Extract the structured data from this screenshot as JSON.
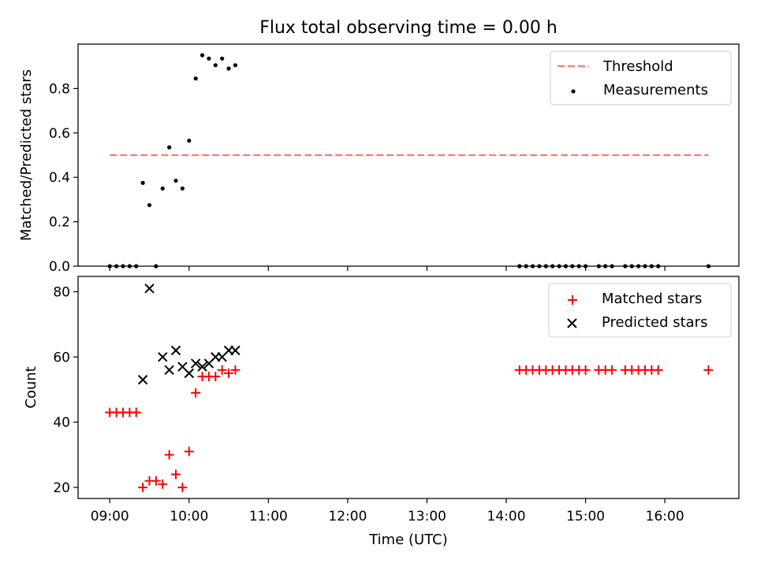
{
  "chart_data": [
    {
      "type": "scatter",
      "title": "Flux total observing time = 0.00 h",
      "xlabel": "",
      "ylabel": "Matched/Predicted stars",
      "xlim": [
        "08:36",
        "16:56"
      ],
      "ylim": [
        0.0,
        1.0
      ],
      "yticks": [
        "0.0",
        "0.2",
        "0.4",
        "0.6",
        "0.8"
      ],
      "ytick_values": [
        0.0,
        0.2,
        0.4,
        0.6,
        0.8
      ],
      "legend_position": "upper right",
      "threshold": {
        "name": "Threshold",
        "value": 0.5,
        "x_start": "09:00",
        "x_end": "16:33",
        "color": "#ff7777",
        "style": "dashed"
      },
      "series": [
        {
          "name": "Measurements",
          "marker": "dot",
          "color": "#000000",
          "x": [
            "09:00",
            "09:05",
            "09:10",
            "09:15",
            "09:20",
            "09:25",
            "09:30",
            "09:35",
            "09:40",
            "09:45",
            "09:50",
            "09:55",
            "10:00",
            "10:05",
            "10:10",
            "10:15",
            "10:20",
            "10:25",
            "10:30",
            "10:35",
            "14:10",
            "14:15",
            "14:20",
            "14:25",
            "14:30",
            "14:35",
            "14:40",
            "14:45",
            "14:50",
            "14:55",
            "15:00",
            "15:10",
            "15:15",
            "15:20",
            "15:30",
            "15:35",
            "15:40",
            "15:45",
            "15:50",
            "15:55",
            "16:33"
          ],
          "y": [
            0,
            0,
            0,
            0,
            0,
            0.375,
            0.275,
            0,
            0.35,
            0.535,
            0.385,
            0.35,
            0.565,
            0.845,
            0.95,
            0.935,
            0.905,
            0.935,
            0.89,
            0.905,
            0,
            0,
            0,
            0,
            0,
            0,
            0,
            0,
            0,
            0,
            0,
            0,
            0,
            0,
            0,
            0,
            0,
            0,
            0,
            0,
            0
          ]
        }
      ]
    },
    {
      "type": "scatter",
      "title": "",
      "xlabel": "Time (UTC)",
      "ylabel": "Count",
      "xlim": [
        "08:36",
        "16:56"
      ],
      "ylim": [
        16.6,
        84.7
      ],
      "yticks": [
        "20",
        "40",
        "60",
        "80"
      ],
      "ytick_values": [
        20,
        40,
        60,
        80
      ],
      "xticks": [
        "09:00",
        "10:00",
        "11:00",
        "12:00",
        "13:00",
        "14:00",
        "15:00",
        "16:00"
      ],
      "legend_position": "upper right",
      "series": [
        {
          "name": "Matched stars",
          "marker": "plus",
          "color": "#ff0000",
          "x": [
            "09:00",
            "09:05",
            "09:10",
            "09:15",
            "09:20",
            "09:25",
            "09:30",
            "09:35",
            "09:40",
            "09:45",
            "09:50",
            "09:55",
            "10:00",
            "10:05",
            "10:10",
            "10:15",
            "10:20",
            "10:25",
            "10:30",
            "10:35",
            "14:10",
            "14:15",
            "14:20",
            "14:25",
            "14:30",
            "14:35",
            "14:40",
            "14:45",
            "14:50",
            "14:55",
            "15:00",
            "15:10",
            "15:15",
            "15:20",
            "15:30",
            "15:35",
            "15:40",
            "15:45",
            "15:50",
            "15:55",
            "16:33"
          ],
          "y": [
            43,
            43,
            43,
            43,
            43,
            20,
            22,
            22,
            21,
            30,
            24,
            20,
            31,
            49,
            54,
            54,
            54,
            56,
            55,
            56,
            56,
            56,
            56,
            56,
            56,
            56,
            56,
            56,
            56,
            56,
            56,
            56,
            56,
            56,
            56,
            56,
            56,
            56,
            56,
            56,
            56
          ]
        },
        {
          "name": "Predicted stars",
          "marker": "x",
          "color": "#000000",
          "x": [
            "09:25",
            "09:30",
            "09:40",
            "09:45",
            "09:50",
            "09:55",
            "10:00",
            "10:05",
            "10:10",
            "10:15",
            "10:20",
            "10:25",
            "10:30",
            "10:35"
          ],
          "y": [
            53,
            81,
            60,
            56,
            62,
            57,
            55,
            58,
            57,
            58,
            60,
            60,
            62,
            62
          ]
        }
      ]
    }
  ]
}
